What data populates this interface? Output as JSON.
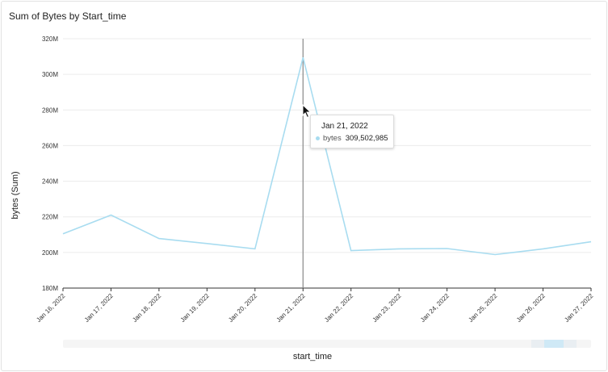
{
  "panel": {
    "title": "Sum of Bytes by Start_time"
  },
  "colors": {
    "series": "#a8dcf0",
    "cursor_line": "#888888",
    "grid": "#ececec"
  },
  "tooltip": {
    "date": "Jan 21, 2022",
    "series_name": "bytes",
    "value": "309,502,985"
  },
  "chart_data": {
    "type": "line",
    "title": "Sum of Bytes by Start_time",
    "xlabel": "start_time",
    "ylabel": "bytes (Sum)",
    "x": [
      "Jan 16, 2022",
      "Jan 17, 2022",
      "Jan 18, 2022",
      "Jan 19, 2022",
      "Jan 20, 2022",
      "Jan 21, 2022",
      "Jan 22, 2022",
      "Jan 23, 2022",
      "Jan 24, 2022",
      "Jan 25, 2022",
      "Jan 26, 2022",
      "Jan 27, 2022"
    ],
    "series": [
      {
        "name": "bytes",
        "values": [
          210500000,
          221000000,
          207800000,
          205000000,
          202000000,
          309502985,
          201000000,
          202000000,
          202200000,
          198800000,
          202000000,
          206000000
        ]
      }
    ],
    "ylim": [
      180000000,
      320000000
    ],
    "yticks": [
      180000000,
      200000000,
      220000000,
      240000000,
      260000000,
      280000000,
      300000000,
      320000000
    ],
    "ytick_labels": [
      "180M",
      "200M",
      "220M",
      "240M",
      "260M",
      "280M",
      "300M",
      "320M"
    ],
    "grid": true,
    "highlight_x": "Jan 21, 2022"
  }
}
